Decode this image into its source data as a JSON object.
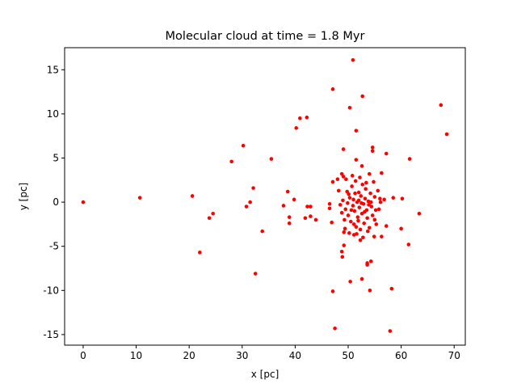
{
  "chart_data": {
    "type": "scatter",
    "title": "Molecular cloud at time = 1.8 Myr",
    "x_label": "x [pc]",
    "y_label": "y [pc]",
    "color": "#ff0000",
    "x": [
      0,
      10.7,
      20.6,
      22.0,
      24.5,
      23.8,
      28.0,
      30.2,
      30.8,
      31.5,
      32.1,
      32.5,
      33.8,
      35.5,
      38.6,
      37.8,
      38.9,
      38.9,
      39.8,
      40.2,
      40.9,
      42.2,
      41.9,
      42.3,
      42.9,
      42.9,
      43.9,
      47.1,
      50.9,
      50.3,
      52.7,
      51.5,
      51.5,
      67.5,
      68.6,
      49.1,
      54.6,
      54.6,
      57.2,
      61.6,
      56.3,
      47.1,
      48.0,
      48.8,
      49.1,
      52.6,
      54.0,
      58.5,
      56.8,
      60.2,
      63.4,
      60.0,
      61.4,
      57.2,
      56.3,
      54.9,
      55.0,
      55.2,
      46.5,
      46.5,
      46.9,
      47.1,
      47.5,
      48.9,
      48.8,
      49.2,
      49.2,
      50.4,
      52.6,
      53.6,
      53.6,
      54.3,
      54.1,
      58.2,
      57.9,
      52.3,
      51.1,
      54.3,
      56.1,
      48.5,
      49.0,
      49.5,
      49.8,
      50.0,
      50.3,
      50.5,
      50.7,
      50.9,
      51.0,
      51.2,
      51.4,
      51.5,
      51.7,
      51.8,
      52.0,
      52.1,
      52.3,
      52.4,
      52.6,
      52.7,
      52.9,
      53.0,
      53.2,
      53.3,
      53.5,
      53.6,
      53.8,
      54.0,
      54.2,
      54.4,
      54.6,
      55.0,
      55.3,
      55.6,
      49.3,
      49.6,
      50.2,
      50.8,
      51.6,
      52.2,
      52.8,
      53.4,
      48.8,
      49.9,
      50.6,
      51.3,
      51.9,
      52.5,
      53.1,
      53.7,
      50.1,
      51.1,
      52.0,
      53.9,
      48.2,
      55.8,
      56.0,
      54.8,
      49.4
    ],
    "values": [
      0,
      0.5,
      0.7,
      -5.7,
      -1.3,
      -1.8,
      4.6,
      6.4,
      -0.5,
      0,
      1.6,
      -8.1,
      -3.3,
      4.9,
      1.2,
      -0.4,
      -1.7,
      -2.4,
      0.3,
      8.4,
      9.5,
      9.6,
      -1.8,
      -0.5,
      -0.5,
      -1.6,
      -2.0,
      12.8,
      16.1,
      10.7,
      12.0,
      8.1,
      4.8,
      11.0,
      7.7,
      6.0,
      6.2,
      5.8,
      5.5,
      4.9,
      3.3,
      2.3,
      2.6,
      3.2,
      2.9,
      4.1,
      3.2,
      0.5,
      0.3,
      0.4,
      -1.3,
      -3.0,
      -4.8,
      -2.7,
      -3.9,
      -3.9,
      -2.0,
      -0.9,
      -0.2,
      -0.7,
      -2.3,
      -10.1,
      -14.3,
      -6.2,
      -5.6,
      -4.9,
      -3.4,
      -9.0,
      -8.7,
      -7.1,
      -6.9,
      -6.7,
      -10.0,
      -9.8,
      -14.6,
      -4.3,
      -3.7,
      0,
      0,
      -0.3,
      0.2,
      -0.8,
      1.2,
      -1.5,
      0.5,
      -2.2,
      1.8,
      -0.4,
      0.3,
      -1.0,
      2.4,
      -2.8,
      0.0,
      -1.7,
      1.1,
      -0.6,
      -3.1,
      0.7,
      -1.3,
      2.0,
      -0.2,
      -2.4,
      0.4,
      1.5,
      -0.9,
      -1.8,
      0.1,
      -2.9,
      1.0,
      -0.5,
      -1.5,
      0.6,
      -2.5,
      1.3,
      -2.0,
      2.6,
      -3.5,
      3.0,
      -3.6,
      2.8,
      -4.0,
      2.2,
      -1.2,
      -0.1,
      -0.9,
      1.0,
      -2.1,
      -0.1,
      -1.1,
      -3.3,
      0.9,
      -2.5,
      0.2,
      -0.3,
      1.3,
      -0.8,
      0.4,
      2.3,
      -3.0
    ],
    "xlim": [
      -3.5,
      72.1
    ],
    "ylim": [
      -16.2,
      17.5
    ],
    "xticks": [
      0,
      10,
      20,
      30,
      40,
      50,
      60,
      70
    ],
    "yticks": [
      -15,
      -10,
      -5,
      0,
      5,
      10,
      15
    ]
  }
}
